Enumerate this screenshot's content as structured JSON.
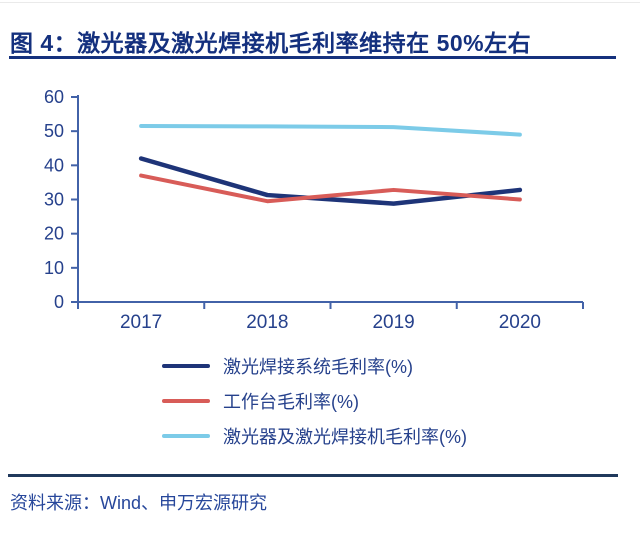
{
  "page": {
    "title": "图 4：激光器及激光焊接机毛利率维持在 50%左右",
    "source": "资料来源：Wind、申万宏源研究"
  },
  "colors": {
    "title_navy": "#14307E",
    "axis_line": "#4262A8",
    "tick_label": "#26418C",
    "footer_rule": "#20395C",
    "source_text": "#27479B"
  },
  "chart_data": {
    "type": "line",
    "title": "",
    "xlabel": "",
    "ylabel": "",
    "categories": [
      "2017",
      "2018",
      "2019",
      "2020"
    ],
    "series": [
      {
        "name": "激光焊接系统毛利率(%)",
        "color": "#1E3478",
        "values": [
          42,
          31.3,
          28.8,
          32.8
        ]
      },
      {
        "name": "工作台毛利率(%)",
        "color": "#D85C58",
        "values": [
          37,
          29.5,
          32.8,
          30.0
        ]
      },
      {
        "name": "激光器及激光焊接机毛利率(%)",
        "color": "#7CCBE8",
        "values": [
          51.5,
          51.4,
          51.2,
          49.0
        ]
      }
    ],
    "ylim": [
      0,
      60
    ],
    "ytick_step": 10,
    "grid": false,
    "legend_position": "bottom-left"
  }
}
